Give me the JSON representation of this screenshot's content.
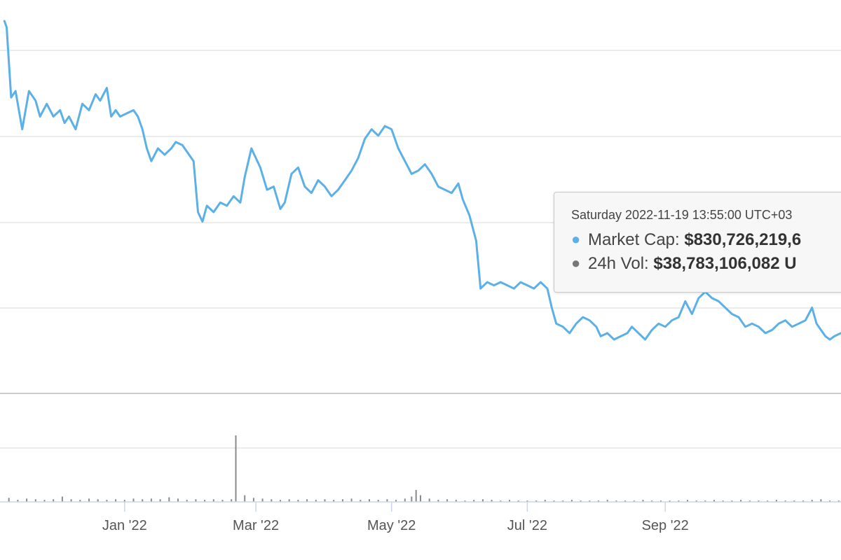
{
  "colors": {
    "market_cap_line": "#5bb0e8",
    "volume_bars": "#8a8a8a",
    "gridlines": "#e6e6e6",
    "tooltip_mcap_dot": "#5bb0e8",
    "tooltip_vol_dot": "#777777"
  },
  "tooltip": {
    "date": "Saturday 2022-11-19 13:55:00 UTC+03",
    "market_cap_label": "Market Cap:",
    "market_cap_value": "$830,726,219,6",
    "vol_label": "24h Vol:",
    "vol_value": "$38,783,106,082 U"
  },
  "chart_data": {
    "type": "line",
    "x_axis": {
      "ticks": [
        {
          "date": "2022-01-01",
          "label": "Jan '22"
        },
        {
          "date": "2022-03-01",
          "label": "Mar '22"
        },
        {
          "date": "2022-05-01",
          "label": "May '22"
        },
        {
          "date": "2022-07-01",
          "label": "Jul '22"
        },
        {
          "date": "2022-09-01",
          "label": "Sep '22"
        }
      ]
    },
    "grid": true,
    "y_axis_labels_visible": false,
    "series": [
      {
        "kind": "market_cap_line",
        "points": [
          [
            "2021-11-08",
            1.0
          ],
          [
            "2021-11-09",
            0.98
          ],
          [
            "2021-11-11",
            0.76
          ],
          [
            "2021-11-13",
            0.78
          ],
          [
            "2021-11-16",
            0.66
          ],
          [
            "2021-11-19",
            0.78
          ],
          [
            "2021-11-22",
            0.75
          ],
          [
            "2021-11-24",
            0.7
          ],
          [
            "2021-11-27",
            0.74
          ],
          [
            "2021-11-30",
            0.7
          ],
          [
            "2021-12-03",
            0.72
          ],
          [
            "2021-12-05",
            0.68
          ],
          [
            "2021-12-07",
            0.7
          ],
          [
            "2021-12-10",
            0.66
          ],
          [
            "2021-12-13",
            0.74
          ],
          [
            "2021-12-16",
            0.72
          ],
          [
            "2021-12-19",
            0.77
          ],
          [
            "2021-12-21",
            0.75
          ],
          [
            "2021-12-24",
            0.79
          ],
          [
            "2021-12-26",
            0.7
          ],
          [
            "2021-12-28",
            0.72
          ],
          [
            "2021-12-30",
            0.7
          ],
          [
            "2022-01-02",
            0.71
          ],
          [
            "2022-01-05",
            0.72
          ],
          [
            "2022-01-07",
            0.7
          ],
          [
            "2022-01-09",
            0.66
          ],
          [
            "2022-01-11",
            0.6
          ],
          [
            "2022-01-13",
            0.56
          ],
          [
            "2022-01-16",
            0.6
          ],
          [
            "2022-01-19",
            0.58
          ],
          [
            "2022-01-22",
            0.6
          ],
          [
            "2022-01-24",
            0.62
          ],
          [
            "2022-01-27",
            0.61
          ],
          [
            "2022-01-30",
            0.58
          ],
          [
            "2022-02-01",
            0.56
          ],
          [
            "2022-02-03",
            0.4
          ],
          [
            "2022-02-05",
            0.37
          ],
          [
            "2022-02-07",
            0.42
          ],
          [
            "2022-02-10",
            0.4
          ],
          [
            "2022-02-13",
            0.43
          ],
          [
            "2022-02-16",
            0.42
          ],
          [
            "2022-02-19",
            0.45
          ],
          [
            "2022-02-22",
            0.43
          ],
          [
            "2022-02-24",
            0.51
          ],
          [
            "2022-02-27",
            0.6
          ],
          [
            "2022-03-01",
            0.57
          ],
          [
            "2022-03-03",
            0.54
          ],
          [
            "2022-03-06",
            0.47
          ],
          [
            "2022-03-09",
            0.48
          ],
          [
            "2022-03-12",
            0.41
          ],
          [
            "2022-03-14",
            0.43
          ],
          [
            "2022-03-17",
            0.52
          ],
          [
            "2022-03-20",
            0.54
          ],
          [
            "2022-03-23",
            0.48
          ],
          [
            "2022-03-26",
            0.46
          ],
          [
            "2022-03-29",
            0.5
          ],
          [
            "2022-04-01",
            0.48
          ],
          [
            "2022-04-04",
            0.45
          ],
          [
            "2022-04-07",
            0.47
          ],
          [
            "2022-04-10",
            0.5
          ],
          [
            "2022-04-13",
            0.53
          ],
          [
            "2022-04-16",
            0.57
          ],
          [
            "2022-04-19",
            0.63
          ],
          [
            "2022-04-22",
            0.66
          ],
          [
            "2022-04-25",
            0.64
          ],
          [
            "2022-04-28",
            0.67
          ],
          [
            "2022-05-01",
            0.66
          ],
          [
            "2022-05-04",
            0.6
          ],
          [
            "2022-05-07",
            0.56
          ],
          [
            "2022-05-10",
            0.52
          ],
          [
            "2022-05-13",
            0.53
          ],
          [
            "2022-05-16",
            0.55
          ],
          [
            "2022-05-19",
            0.52
          ],
          [
            "2022-05-22",
            0.48
          ],
          [
            "2022-05-25",
            0.47
          ],
          [
            "2022-05-28",
            0.46
          ],
          [
            "2022-05-31",
            0.49
          ],
          [
            "2022-06-02",
            0.44
          ],
          [
            "2022-06-05",
            0.39
          ],
          [
            "2022-06-08",
            0.31
          ],
          [
            "2022-06-10",
            0.16
          ],
          [
            "2022-06-13",
            0.18
          ],
          [
            "2022-06-16",
            0.17
          ],
          [
            "2022-06-19",
            0.18
          ],
          [
            "2022-06-22",
            0.17
          ],
          [
            "2022-06-25",
            0.16
          ],
          [
            "2022-06-28",
            0.18
          ],
          [
            "2022-07-01",
            0.17
          ],
          [
            "2022-07-04",
            0.16
          ],
          [
            "2022-07-07",
            0.18
          ],
          [
            "2022-07-10",
            0.16
          ],
          [
            "2022-07-12",
            0.1
          ],
          [
            "2022-07-14",
            0.05
          ],
          [
            "2022-07-17",
            0.04
          ],
          [
            "2022-07-20",
            0.02
          ],
          [
            "2022-07-23",
            0.05
          ],
          [
            "2022-07-26",
            0.07
          ],
          [
            "2022-07-29",
            0.06
          ],
          [
            "2022-08-01",
            0.04
          ],
          [
            "2022-08-03",
            0.01
          ],
          [
            "2022-08-06",
            0.02
          ],
          [
            "2022-08-09",
            0.0
          ],
          [
            "2022-08-12",
            0.01
          ],
          [
            "2022-08-15",
            0.02
          ],
          [
            "2022-08-17",
            0.04
          ],
          [
            "2022-08-20",
            0.02
          ],
          [
            "2022-08-23",
            0.0
          ],
          [
            "2022-08-26",
            0.03
          ],
          [
            "2022-08-29",
            0.05
          ],
          [
            "2022-09-01",
            0.04
          ],
          [
            "2022-09-04",
            0.06
          ],
          [
            "2022-09-07",
            0.07
          ],
          [
            "2022-09-10",
            0.12
          ],
          [
            "2022-09-13",
            0.08
          ],
          [
            "2022-09-16",
            0.13
          ],
          [
            "2022-09-19",
            0.15
          ],
          [
            "2022-09-22",
            0.13
          ],
          [
            "2022-09-25",
            0.12
          ],
          [
            "2022-09-28",
            0.1
          ],
          [
            "2022-10-01",
            0.08
          ],
          [
            "2022-10-04",
            0.07
          ],
          [
            "2022-10-07",
            0.04
          ],
          [
            "2022-10-10",
            0.05
          ],
          [
            "2022-10-13",
            0.04
          ],
          [
            "2022-10-16",
            0.02
          ],
          [
            "2022-10-19",
            0.03
          ],
          [
            "2022-10-22",
            0.05
          ],
          [
            "2022-10-25",
            0.06
          ],
          [
            "2022-10-28",
            0.04
          ],
          [
            "2022-10-31",
            0.05
          ],
          [
            "2022-11-03",
            0.06
          ],
          [
            "2022-11-06",
            0.1
          ],
          [
            "2022-11-08",
            0.05
          ],
          [
            "2022-11-10",
            0.03
          ],
          [
            "2022-11-12",
            0.01
          ],
          [
            "2022-11-14",
            0.0
          ],
          [
            "2022-11-16",
            0.01
          ],
          [
            "2022-11-19",
            0.02
          ]
        ]
      },
      {
        "kind": "volume_bars",
        "points": [
          [
            "2021-11-10",
            0.06
          ],
          [
            "2021-11-14",
            0.03
          ],
          [
            "2021-11-18",
            0.05
          ],
          [
            "2021-11-22",
            0.04
          ],
          [
            "2021-11-26",
            0.03
          ],
          [
            "2021-11-30",
            0.04
          ],
          [
            "2021-12-04",
            0.08
          ],
          [
            "2021-12-08",
            0.04
          ],
          [
            "2021-12-12",
            0.03
          ],
          [
            "2021-12-16",
            0.05
          ],
          [
            "2021-12-20",
            0.04
          ],
          [
            "2021-12-24",
            0.03
          ],
          [
            "2021-12-28",
            0.04
          ],
          [
            "2022-01-01",
            0.03
          ],
          [
            "2022-01-05",
            0.05
          ],
          [
            "2022-01-09",
            0.04
          ],
          [
            "2022-01-13",
            0.05
          ],
          [
            "2022-01-17",
            0.04
          ],
          [
            "2022-01-21",
            0.07
          ],
          [
            "2022-01-25",
            0.05
          ],
          [
            "2022-01-29",
            0.03
          ],
          [
            "2022-02-02",
            0.04
          ],
          [
            "2022-02-06",
            0.03
          ],
          [
            "2022-02-10",
            0.04
          ],
          [
            "2022-02-14",
            0.03
          ],
          [
            "2022-02-18",
            0.04
          ],
          [
            "2022-02-20",
            1.0
          ],
          [
            "2022-02-24",
            0.1
          ],
          [
            "2022-02-28",
            0.06
          ],
          [
            "2022-03-04",
            0.05
          ],
          [
            "2022-03-08",
            0.04
          ],
          [
            "2022-03-12",
            0.03
          ],
          [
            "2022-03-16",
            0.04
          ],
          [
            "2022-03-20",
            0.03
          ],
          [
            "2022-03-24",
            0.04
          ],
          [
            "2022-03-28",
            0.03
          ],
          [
            "2022-04-01",
            0.04
          ],
          [
            "2022-04-05",
            0.03
          ],
          [
            "2022-04-09",
            0.04
          ],
          [
            "2022-04-13",
            0.05
          ],
          [
            "2022-04-17",
            0.03
          ],
          [
            "2022-04-21",
            0.04
          ],
          [
            "2022-04-25",
            0.03
          ],
          [
            "2022-04-29",
            0.04
          ],
          [
            "2022-05-03",
            0.03
          ],
          [
            "2022-05-07",
            0.05
          ],
          [
            "2022-05-10",
            0.08
          ],
          [
            "2022-05-12",
            0.18
          ],
          [
            "2022-05-14",
            0.1
          ],
          [
            "2022-05-18",
            0.05
          ],
          [
            "2022-05-22",
            0.03
          ],
          [
            "2022-05-26",
            0.04
          ],
          [
            "2022-05-30",
            0.03
          ],
          [
            "2022-06-03",
            0.02
          ],
          [
            "2022-06-07",
            0.03
          ],
          [
            "2022-06-11",
            0.04
          ],
          [
            "2022-06-15",
            0.03
          ],
          [
            "2022-06-19",
            0.02
          ],
          [
            "2022-06-23",
            0.03
          ],
          [
            "2022-06-27",
            0.02
          ],
          [
            "2022-07-01",
            0.02
          ],
          [
            "2022-07-05",
            0.02
          ],
          [
            "2022-07-09",
            0.03
          ],
          [
            "2022-07-13",
            0.02
          ],
          [
            "2022-07-17",
            0.02
          ],
          [
            "2022-07-21",
            0.03
          ],
          [
            "2022-07-25",
            0.02
          ],
          [
            "2022-07-29",
            0.02
          ],
          [
            "2022-08-02",
            0.02
          ],
          [
            "2022-08-06",
            0.03
          ],
          [
            "2022-08-10",
            0.02
          ],
          [
            "2022-08-14",
            0.02
          ],
          [
            "2022-08-18",
            0.02
          ],
          [
            "2022-08-22",
            0.03
          ],
          [
            "2022-08-26",
            0.02
          ],
          [
            "2022-08-30",
            0.02
          ],
          [
            "2022-09-03",
            0.02
          ],
          [
            "2022-09-07",
            0.02
          ],
          [
            "2022-09-11",
            0.03
          ],
          [
            "2022-09-15",
            0.02
          ],
          [
            "2022-09-19",
            0.02
          ],
          [
            "2022-09-23",
            0.03
          ],
          [
            "2022-09-27",
            0.02
          ],
          [
            "2022-10-01",
            0.02
          ],
          [
            "2022-10-05",
            0.03
          ],
          [
            "2022-10-09",
            0.02
          ],
          [
            "2022-10-13",
            0.02
          ],
          [
            "2022-10-17",
            0.02
          ],
          [
            "2022-10-21",
            0.03
          ],
          [
            "2022-10-25",
            0.02
          ],
          [
            "2022-10-29",
            0.02
          ],
          [
            "2022-11-02",
            0.02
          ],
          [
            "2022-11-06",
            0.03
          ],
          [
            "2022-11-10",
            0.04
          ],
          [
            "2022-11-14",
            0.02
          ],
          [
            "2022-11-18",
            0.02
          ]
        ]
      }
    ]
  }
}
